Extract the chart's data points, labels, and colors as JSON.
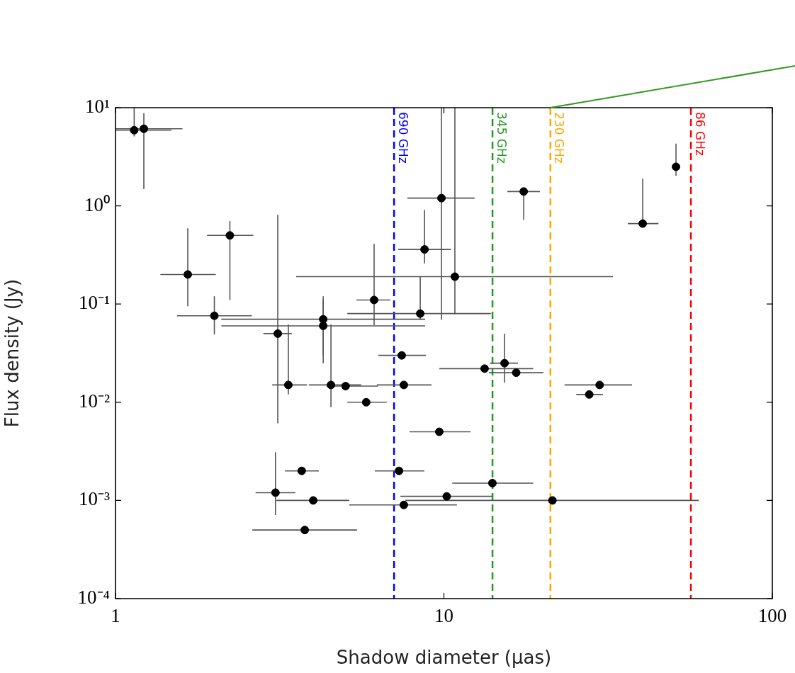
{
  "chart_data": {
    "type": "scatter",
    "xlabel": "Shadow diameter (μas)",
    "ylabel": "Flux density (Jy)",
    "log": "xy",
    "grid": false,
    "legend": false,
    "marker": "circle",
    "xlim": [
      1,
      100
    ],
    "xticks": [
      1,
      10,
      100
    ],
    "ylim": [
      0.0001,
      10
    ],
    "yticks": [
      {
        "value": 0.0001,
        "label": "10⁻⁴"
      },
      {
        "value": 0.001,
        "label": "10⁻³"
      },
      {
        "value": 0.01,
        "label": "10⁻²"
      },
      {
        "value": 0.1,
        "label": "10⁻¹"
      },
      {
        "value": 1,
        "label": "10⁰"
      },
      {
        "value": 10,
        "label": "10¹"
      }
    ],
    "x": [
      1.14,
      1.22,
      1.66,
      2.23,
      2.0,
      3.12,
      3.36,
      4.29,
      4.29,
      4.53,
      5.02,
      7.55,
      5.8,
      3.69,
      3.07,
      4.0,
      3.77,
      7.55,
      7.3,
      7.44,
      9.68,
      10.2,
      14.05,
      21.4,
      13.3,
      15.3,
      16.6,
      29.8,
      27.7,
      40.3,
      50.9,
      17.5,
      9.83,
      8.73,
      10.8,
      6.13,
      8.47
    ],
    "series": [
      {
        "color": "#000000",
        "values": [
          5.9,
          6.1,
          0.2,
          0.5,
          0.076,
          0.05,
          0.015,
          0.07,
          0.06,
          0.015,
          0.0146,
          0.015,
          0.01,
          0.002,
          0.0012,
          0.001,
          0.0005,
          0.0009,
          0.002,
          0.03,
          0.005,
          0.0011,
          0.0015,
          0.001,
          0.022,
          0.025,
          0.02,
          0.015,
          0.012,
          0.66,
          2.5,
          1.4,
          1.2,
          0.36,
          0.19,
          0.11,
          0.08
        ],
        "xerrors": [
          [
            1,
            1.48
          ],
          [
            1,
            1.6
          ],
          [
            1.37,
            2.02
          ],
          [
            1.9,
            2.63
          ],
          [
            1.54,
            2.6
          ],
          [
            2.82,
            3.44
          ],
          [
            3.0,
            3.83
          ],
          [
            2.1,
            8.77
          ],
          [
            2.1,
            8.77
          ],
          [
            3.88,
            5.6
          ],
          [
            4.4,
            6.3
          ],
          [
            6.25,
            9.17
          ],
          [
            5.08,
            6.7
          ],
          [
            3.28,
            4.16
          ],
          [
            2.67,
            3.53
          ],
          [
            3.09,
            5.15
          ],
          [
            2.61,
            5.44
          ],
          [
            5.15,
            10.96
          ],
          [
            6.16,
            8.72
          ],
          [
            6.31,
            8.81
          ],
          [
            7.86,
            12.05
          ],
          [
            7.37,
            14.1
          ],
          [
            10.6,
            18.7
          ],
          [
            7.63,
            59.7
          ],
          [
            9.68,
            18.7
          ],
          [
            13.8,
            16.8
          ],
          [
            13.7,
            20.1
          ],
          [
            23.3,
            37.4
          ],
          [
            25.3,
            30.5
          ],
          [
            36.3,
            45
          ],
          null,
          [
            15.6,
            19.6
          ],
          [
            7.74,
            12.4
          ],
          [
            7.26,
            10.5
          ],
          [
            3.55,
            32.7
          ],
          [
            5.41,
            6.87
          ],
          [
            5.08,
            13.9
          ]
        ],
        "errors": [
          [
            5.1,
            10
          ],
          [
            1.48,
            8.8
          ],
          [
            0.095,
            0.59
          ],
          [
            0.11,
            0.7
          ],
          [
            0.049,
            0.12
          ],
          [
            0.0061,
            0.81
          ],
          [
            0.012,
            0.062
          ],
          [
            0.03,
            0.12
          ],
          [
            0.025,
            0.11
          ],
          [
            0.0089,
            0.062
          ],
          null,
          null,
          null,
          null,
          [
            0.00071,
            0.0031
          ],
          null,
          null,
          null,
          null,
          null,
          null,
          null,
          null,
          null,
          null,
          [
            0.0158,
            0.05
          ],
          null,
          null,
          null,
          [
            0.66,
            1.9
          ],
          [
            2.03,
            4.3
          ],
          [
            0.72,
            1.4
          ],
          [
            0.069,
            10
          ],
          [
            0.26,
            0.91
          ],
          [
            0.079,
            10
          ],
          [
            0.061,
            0.41
          ],
          [
            0.069,
            0.19
          ]
        ]
      }
    ],
    "ref_lines": [
      {
        "axis": "x",
        "value": 7.05,
        "label": "690 GHz",
        "color": "#0000ff",
        "line_style": "dashed"
      },
      {
        "axis": "x",
        "value": 14.06,
        "label": "345 GHz",
        "color": "#229922",
        "line_style": "dashed"
      },
      {
        "axis": "x",
        "value": 21.1,
        "label": "230 GHz",
        "color": "#ffa500",
        "line_style": "dashed"
      },
      {
        "axis": "x",
        "value": 56.5,
        "label": "86 GHz",
        "color": "#ff0000",
        "line_style": "dashed"
      }
    ]
  }
}
